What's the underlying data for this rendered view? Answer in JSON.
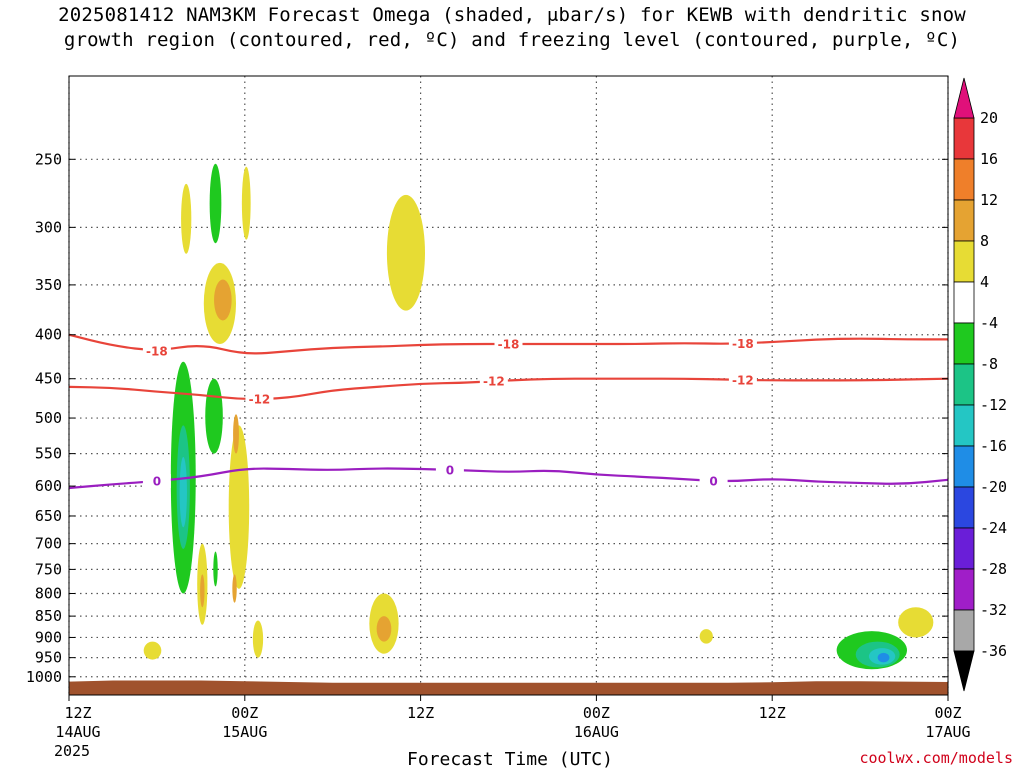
{
  "title": {
    "line1": "2025081412 NAM3KM Forecast Omega (shaded, μbar/s) for KEWB with dendritic snow",
    "line2": "growth region (contoured, red, ºC) and freezing level (contoured, purple, ºC)"
  },
  "xlabel": "Forecast Time (UTC)",
  "credit": "coolwx.com/models",
  "chart_data": {
    "type": "heatmap",
    "title": "2025081412 NAM3KM Forecast Omega (shaded, μbar/s) for KEWB with dendritic snow growth region (contoured, red, ºC) and freezing level (contoured, purple, ºC)",
    "xlabel": "Forecast Time (UTC)",
    "ylabel": "",
    "y_scale": "log (pressure, inverted)",
    "ylim": [
      1050,
      200
    ],
    "xlim_hours": [
      0,
      60
    ],
    "x_ticks": [
      {
        "hour": 0,
        "label": "12Z",
        "sub1": "14AUG",
        "sub2": "2025"
      },
      {
        "hour": 12,
        "label": "00Z",
        "sub1": "15AUG",
        "sub2": ""
      },
      {
        "hour": 24,
        "label": "12Z",
        "sub1": "",
        "sub2": ""
      },
      {
        "hour": 36,
        "label": "00Z",
        "sub1": "16AUG",
        "sub2": ""
      },
      {
        "hour": 48,
        "label": "12Z",
        "sub1": "",
        "sub2": ""
      },
      {
        "hour": 60,
        "label": "00Z",
        "sub1": "17AUG",
        "sub2": ""
      }
    ],
    "y_ticks": [
      250,
      300,
      350,
      400,
      450,
      500,
      550,
      600,
      650,
      700,
      750,
      800,
      850,
      900,
      950,
      1000
    ],
    "colorbar": {
      "labels": [
        "20",
        "16",
        "12",
        "8",
        "4",
        "-4",
        "-8",
        "-12",
        "-16",
        "-20",
        "-24",
        "-28",
        "-32",
        "-36"
      ],
      "bins": [
        {
          "from": 16,
          "to": 20,
          "color": "#e8373a"
        },
        {
          "from": 12,
          "to": 16,
          "color": "#ef7f2a"
        },
        {
          "from": 8,
          "to": 12,
          "color": "#e5a332"
        },
        {
          "from": 4,
          "to": 8,
          "color": "#e7dc34"
        },
        {
          "from": -4,
          "to": 4,
          "color": "#ffffff"
        },
        {
          "from": -8,
          "to": -4,
          "color": "#1fc91f"
        },
        {
          "from": -12,
          "to": -8,
          "color": "#1cc486"
        },
        {
          "from": -16,
          "to": -12,
          "color": "#24c6c4"
        },
        {
          "from": -20,
          "to": -16,
          "color": "#1f8de6"
        },
        {
          "from": -24,
          "to": -20,
          "color": "#2b47e0"
        },
        {
          "from": -28,
          "to": -24,
          "color": "#6a1ed8"
        },
        {
          "from": -32,
          "to": -28,
          "color": "#a01ec8"
        },
        {
          "from": -36,
          "to": -32,
          "color": "#a8a8a8"
        }
      ],
      "over_color": "#e0107a",
      "under_color": "#000000"
    },
    "contours": [
      {
        "name": "-18",
        "color": "#e8443a",
        "x": [
          0,
          3,
          6,
          9,
          12,
          15,
          18,
          21,
          24,
          27,
          30,
          33,
          36,
          39,
          42,
          45,
          48,
          51,
          54,
          57,
          60
        ],
        "y": [
          400,
          412,
          418,
          410,
          422,
          418,
          414,
          413,
          411,
          410,
          410,
          410,
          410,
          410,
          409,
          410,
          408,
          405,
          404,
          405,
          405
        ],
        "labels": [
          {
            "x": 6,
            "text": "-18"
          },
          {
            "x": 30,
            "text": "-18"
          },
          {
            "x": 46,
            "text": "-18"
          }
        ]
      },
      {
        "name": "-12",
        "color": "#e8443a",
        "x": [
          0,
          3,
          6,
          9,
          12,
          15,
          18,
          21,
          24,
          27,
          30,
          33,
          36,
          39,
          42,
          45,
          48,
          51,
          54,
          57,
          60
        ],
        "y": [
          460,
          461,
          466,
          470,
          476,
          474,
          464,
          460,
          456,
          455,
          452,
          450,
          450,
          450,
          450,
          451,
          452,
          452,
          452,
          451,
          450
        ],
        "labels": [
          {
            "x": 13,
            "text": "-12"
          },
          {
            "x": 29,
            "text": "-12"
          },
          {
            "x": 46,
            "text": "-12"
          }
        ]
      },
      {
        "name": "0",
        "color": "#9a1ec0",
        "x": [
          0,
          3,
          6,
          9,
          12,
          15,
          18,
          21,
          24,
          27,
          30,
          33,
          36,
          39,
          42,
          45,
          48,
          51,
          54,
          57,
          60
        ],
        "y": [
          603,
          597,
          592,
          585,
          572,
          573,
          575,
          572,
          573,
          575,
          578,
          575,
          582,
          585,
          589,
          593,
          588,
          593,
          595,
          597,
          590
        ],
        "labels": [
          {
            "x": 6,
            "text": "0"
          },
          {
            "x": 26,
            "text": "0"
          },
          {
            "x": 44,
            "text": "0"
          }
        ]
      }
    ],
    "omega_features": [
      {
        "hour": 8.0,
        "p": 292,
        "dh": 0.35,
        "dp_up": 25,
        "dp_dn": 30,
        "value": 4
      },
      {
        "hour": 10.0,
        "p": 278,
        "dh": 0.4,
        "dp_up": 25,
        "dp_dn": 35,
        "value": -4
      },
      {
        "hour": 12.1,
        "p": 280,
        "dh": 0.3,
        "dp_up": 25,
        "dp_dn": 30,
        "value": 4
      },
      {
        "hour": 10.3,
        "p": 365,
        "dh": 1.1,
        "dp_up": 35,
        "dp_dn": 45,
        "value": 4
      },
      {
        "hour": 10.5,
        "p": 365,
        "dh": 0.6,
        "dp_up": 20,
        "dp_dn": 20,
        "value": 8
      },
      {
        "hour": 23.0,
        "p": 320,
        "dh": 1.3,
        "dp_up": 45,
        "dp_dn": 55,
        "value": 4
      },
      {
        "hour": 7.8,
        "p": 590,
        "dh": 0.85,
        "dp_up": 160,
        "dp_dn": 210,
        "value": -4
      },
      {
        "hour": 7.8,
        "p": 600,
        "dh": 0.45,
        "dp_up": 90,
        "dp_dn": 110,
        "value": -8
      },
      {
        "hour": 7.8,
        "p": 610,
        "dh": 0.25,
        "dp_up": 55,
        "dp_dn": 60,
        "value": -12
      },
      {
        "hour": 9.9,
        "p": 490,
        "dh": 0.6,
        "dp_up": 40,
        "dp_dn": 60,
        "value": -4
      },
      {
        "hour": 11.6,
        "p": 620,
        "dh": 0.7,
        "dp_up": 110,
        "dp_dn": 170,
        "value": 4
      },
      {
        "hour": 11.4,
        "p": 520,
        "dh": 0.2,
        "dp_up": 25,
        "dp_dn": 30,
        "value": 8
      },
      {
        "hour": 9.1,
        "p": 760,
        "dh": 0.35,
        "dp_up": 60,
        "dp_dn": 110,
        "value": 4
      },
      {
        "hour": 9.1,
        "p": 790,
        "dh": 0.15,
        "dp_up": 30,
        "dp_dn": 40,
        "value": 8
      },
      {
        "hour": 10.0,
        "p": 755,
        "dh": 0.15,
        "dp_up": 40,
        "dp_dn": 30,
        "value": -4
      },
      {
        "hour": 11.3,
        "p": 790,
        "dh": 0.15,
        "dp_up": 30,
        "dp_dn": 30,
        "value": 8
      },
      {
        "hour": 12.9,
        "p": 900,
        "dh": 0.35,
        "dp_up": 40,
        "dp_dn": 50,
        "value": 4
      },
      {
        "hour": 5.7,
        "p": 930,
        "dh": 0.6,
        "dp_up": 20,
        "dp_dn": 25,
        "value": 4
      },
      {
        "hour": 21.5,
        "p": 870,
        "dh": 1.0,
        "dp_up": 70,
        "dp_dn": 70,
        "value": 4
      },
      {
        "hour": 21.5,
        "p": 880,
        "dh": 0.5,
        "dp_up": 30,
        "dp_dn": 30,
        "value": 8
      },
      {
        "hour": 43.5,
        "p": 895,
        "dh": 0.45,
        "dp_up": 15,
        "dp_dn": 20,
        "value": 4
      },
      {
        "hour": 57.8,
        "p": 865,
        "dh": 1.2,
        "dp_up": 35,
        "dp_dn": 35,
        "value": 4
      },
      {
        "hour": 54.8,
        "p": 940,
        "dh": 2.4,
        "dp_up": 55,
        "dp_dn": 40,
        "value": -4
      },
      {
        "hour": 55.2,
        "p": 945,
        "dh": 1.5,
        "dp_up": 35,
        "dp_dn": 30,
        "value": -8
      },
      {
        "hour": 55.5,
        "p": 948,
        "dh": 0.9,
        "dp_up": 22,
        "dp_dn": 20,
        "value": -12
      },
      {
        "hour": 55.6,
        "p": 950,
        "dh": 0.4,
        "dp_up": 12,
        "dp_dn": 12,
        "value": -16
      }
    ],
    "terrain": {
      "color": "#a0522d",
      "x": [
        0,
        3,
        6,
        9,
        12,
        15,
        18,
        21,
        24,
        27,
        30,
        33,
        36,
        39,
        42,
        45,
        48,
        51,
        54,
        57,
        60
      ],
      "p": [
        1013,
        1010,
        1010,
        1010,
        1012,
        1014,
        1016,
        1016,
        1016,
        1016,
        1016,
        1016,
        1016,
        1016,
        1016,
        1016,
        1015,
        1012,
        1012,
        1013,
        1014
      ]
    }
  }
}
